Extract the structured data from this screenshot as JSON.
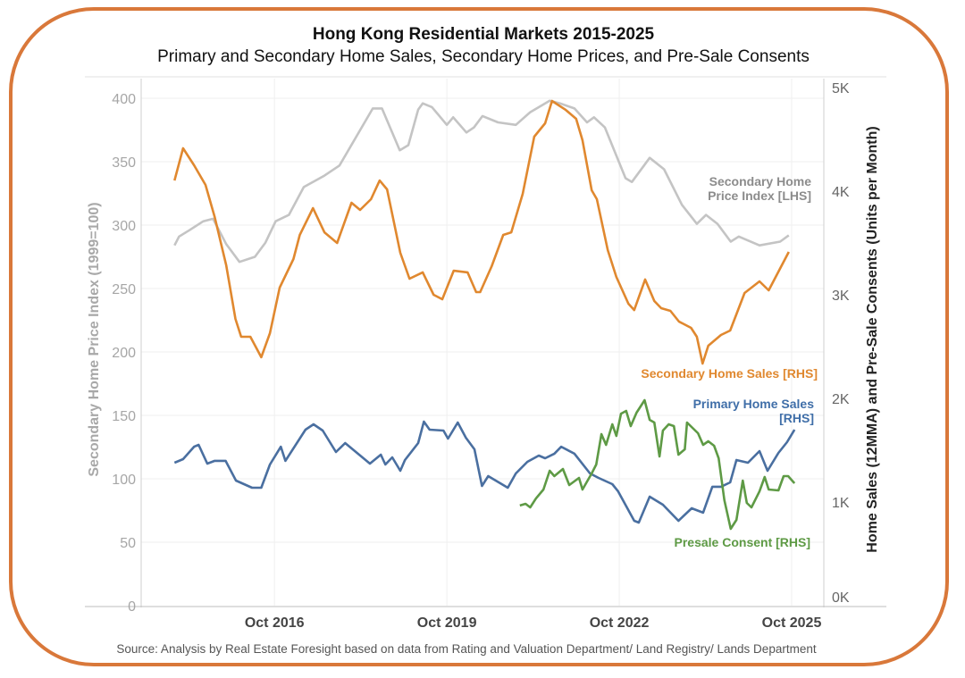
{
  "chart_data": {
    "type": "line",
    "title": "Hong Kong Residential Markets 2015-2025",
    "subtitle": "Primary and Secondary Home Sales, Secondary Home Prices, and Pre-Sale Consents",
    "source": "Source: Analysis by Real Estate Foresight based on data from Rating and Valuation Department/ Land Registry/ Lands Department",
    "ylabel_left": "Secondary Home Price Index (1999=100)",
    "ylabel_right": "Home Sales (12MMA) and Pre-Sale Consents (Units per Month)",
    "xlim": [
      2014.43,
      2026.31
    ],
    "ylim_left": [
      0,
      400
    ],
    "ylim_right": [
      0,
      5000
    ],
    "grid": true,
    "x_ticks": [
      {
        "value": 2016.75,
        "label": "Oct 2016"
      },
      {
        "value": 2019.75,
        "label": "Oct 2019"
      },
      {
        "value": 2022.75,
        "label": "Oct 2022"
      },
      {
        "value": 2025.75,
        "label": "Oct 2025"
      }
    ],
    "y_ticks_left": [
      {
        "value": 0,
        "label": "0"
      },
      {
        "value": 50,
        "label": "50"
      },
      {
        "value": 100,
        "label": "100"
      },
      {
        "value": 150,
        "label": "150"
      },
      {
        "value": 200,
        "label": "200"
      },
      {
        "value": 250,
        "label": "250"
      },
      {
        "value": 300,
        "label": "300"
      },
      {
        "value": 350,
        "label": "350"
      },
      {
        "value": 400,
        "label": "400"
      }
    ],
    "y_ticks_right": [
      {
        "value": 0,
        "label": "0K"
      },
      {
        "value": 1000,
        "label": "1K"
      },
      {
        "value": 2000,
        "label": "2K"
      },
      {
        "value": 3000,
        "label": "3K"
      },
      {
        "value": 4000,
        "label": "4K"
      },
      {
        "value": 5000,
        "label": "5K"
      }
    ],
    "series": [
      {
        "name": "Secondary Home Price Index [LHS]",
        "label_lines": [
          "Secondary Home",
          "Price Index [LHS]"
        ],
        "axis": "left",
        "color": "#c4c4c4",
        "label_color": "#8c8c8c",
        "points": [
          [
            2015.01,
            284
          ],
          [
            2015.09,
            291
          ],
          [
            2015.27,
            296
          ],
          [
            2015.51,
            303
          ],
          [
            2015.68,
            305
          ],
          [
            2015.91,
            285
          ],
          [
            2016.14,
            271
          ],
          [
            2016.41,
            275
          ],
          [
            2016.59,
            286
          ],
          [
            2016.77,
            303
          ],
          [
            2017.0,
            308
          ],
          [
            2017.26,
            330
          ],
          [
            2017.62,
            339
          ],
          [
            2017.88,
            347
          ],
          [
            2018.46,
            392
          ],
          [
            2018.62,
            392
          ],
          [
            2018.93,
            359
          ],
          [
            2019.08,
            363
          ],
          [
            2019.25,
            391
          ],
          [
            2019.33,
            396
          ],
          [
            2019.49,
            393
          ],
          [
            2019.75,
            379
          ],
          [
            2019.86,
            385
          ],
          [
            2020.09,
            373
          ],
          [
            2020.22,
            377
          ],
          [
            2020.37,
            386
          ],
          [
            2020.64,
            381
          ],
          [
            2020.95,
            379
          ],
          [
            2021.2,
            389
          ],
          [
            2021.54,
            398
          ],
          [
            2021.72,
            396
          ],
          [
            2021.97,
            392
          ],
          [
            2022.19,
            381
          ],
          [
            2022.31,
            385
          ],
          [
            2022.5,
            377
          ],
          [
            2022.86,
            337
          ],
          [
            2022.97,
            334
          ],
          [
            2023.28,
            353
          ],
          [
            2023.53,
            344
          ],
          [
            2023.84,
            316
          ],
          [
            2024.1,
            301
          ],
          [
            2024.26,
            308
          ],
          [
            2024.46,
            301
          ],
          [
            2024.69,
            287
          ],
          [
            2024.83,
            291
          ],
          [
            2025.19,
            284
          ],
          [
            2025.55,
            287
          ],
          [
            2025.7,
            292
          ]
        ]
      },
      {
        "name": "Secondary Home Sales [RHS]",
        "label_lines": [
          "Secondary Home Sales [RHS]"
        ],
        "axis": "right",
        "color": "#e0882f",
        "label_color": "#e0882f",
        "points": [
          [
            2015.01,
            4103
          ],
          [
            2015.16,
            4414
          ],
          [
            2015.35,
            4250
          ],
          [
            2015.55,
            4060
          ],
          [
            2015.71,
            3750
          ],
          [
            2015.91,
            3284
          ],
          [
            2016.07,
            2767
          ],
          [
            2016.17,
            2595
          ],
          [
            2016.33,
            2595
          ],
          [
            2016.52,
            2397
          ],
          [
            2016.67,
            2629
          ],
          [
            2016.84,
            3069
          ],
          [
            2017.08,
            3345
          ],
          [
            2017.19,
            3578
          ],
          [
            2017.42,
            3836
          ],
          [
            2017.62,
            3603
          ],
          [
            2017.84,
            3500
          ],
          [
            2018.09,
            3888
          ],
          [
            2018.24,
            3819
          ],
          [
            2018.43,
            3922
          ],
          [
            2018.58,
            4103
          ],
          [
            2018.71,
            4017
          ],
          [
            2018.94,
            3405
          ],
          [
            2019.1,
            3155
          ],
          [
            2019.33,
            3216
          ],
          [
            2019.52,
            3000
          ],
          [
            2019.67,
            2957
          ],
          [
            2019.87,
            3233
          ],
          [
            2020.11,
            3216
          ],
          [
            2020.26,
            3026
          ],
          [
            2020.33,
            3026
          ],
          [
            2020.53,
            3276
          ],
          [
            2020.73,
            3578
          ],
          [
            2020.87,
            3603
          ],
          [
            2021.07,
            3974
          ],
          [
            2021.27,
            4526
          ],
          [
            2021.46,
            4655
          ],
          [
            2021.58,
            4871
          ],
          [
            2021.82,
            4784
          ],
          [
            2022.0,
            4698
          ],
          [
            2022.11,
            4491
          ],
          [
            2022.27,
            4009
          ],
          [
            2022.36,
            3922
          ],
          [
            2022.55,
            3431
          ],
          [
            2022.7,
            3172
          ],
          [
            2022.91,
            2914
          ],
          [
            2023.01,
            2853
          ],
          [
            2023.2,
            3147
          ],
          [
            2023.36,
            2940
          ],
          [
            2023.48,
            2871
          ],
          [
            2023.64,
            2845
          ],
          [
            2023.79,
            2741
          ],
          [
            2024.0,
            2681
          ],
          [
            2024.1,
            2595
          ],
          [
            2024.2,
            2336
          ],
          [
            2024.3,
            2509
          ],
          [
            2024.52,
            2612
          ],
          [
            2024.68,
            2655
          ],
          [
            2024.93,
            3017
          ],
          [
            2025.19,
            3129
          ],
          [
            2025.35,
            3043
          ],
          [
            2025.7,
            3414
          ]
        ]
      },
      {
        "name": "Primary Home Sales [RHS]",
        "label_lines": [
          "Primary Home Sales",
          "[RHS]"
        ],
        "axis": "right",
        "color": "#4a6fa0",
        "label_color": "#3f6ea8",
        "points": [
          [
            2015.01,
            1379
          ],
          [
            2015.16,
            1414
          ],
          [
            2015.35,
            1534
          ],
          [
            2015.43,
            1552
          ],
          [
            2015.58,
            1371
          ],
          [
            2015.71,
            1397
          ],
          [
            2015.9,
            1397
          ],
          [
            2016.08,
            1207
          ],
          [
            2016.36,
            1138
          ],
          [
            2016.52,
            1138
          ],
          [
            2016.67,
            1362
          ],
          [
            2016.86,
            1534
          ],
          [
            2016.94,
            1397
          ],
          [
            2017.29,
            1698
          ],
          [
            2017.43,
            1750
          ],
          [
            2017.59,
            1690
          ],
          [
            2017.82,
            1483
          ],
          [
            2017.98,
            1569
          ],
          [
            2018.41,
            1371
          ],
          [
            2018.6,
            1457
          ],
          [
            2018.68,
            1362
          ],
          [
            2018.8,
            1431
          ],
          [
            2018.94,
            1302
          ],
          [
            2019.02,
            1405
          ],
          [
            2019.25,
            1569
          ],
          [
            2019.35,
            1776
          ],
          [
            2019.45,
            1698
          ],
          [
            2019.69,
            1690
          ],
          [
            2019.77,
            1612
          ],
          [
            2019.94,
            1767
          ],
          [
            2020.08,
            1621
          ],
          [
            2020.23,
            1509
          ],
          [
            2020.36,
            1155
          ],
          [
            2020.47,
            1250
          ],
          [
            2020.81,
            1138
          ],
          [
            2020.95,
            1276
          ],
          [
            2021.15,
            1388
          ],
          [
            2021.35,
            1448
          ],
          [
            2021.46,
            1422
          ],
          [
            2021.62,
            1466
          ],
          [
            2021.74,
            1534
          ],
          [
            2021.97,
            1466
          ],
          [
            2022.24,
            1276
          ],
          [
            2022.39,
            1233
          ],
          [
            2022.63,
            1172
          ],
          [
            2022.73,
            1103
          ],
          [
            2023.01,
            819
          ],
          [
            2023.09,
            802
          ],
          [
            2023.28,
            1052
          ],
          [
            2023.51,
            974
          ],
          [
            2023.78,
            819
          ],
          [
            2024.01,
            940
          ],
          [
            2024.21,
            897
          ],
          [
            2024.37,
            1147
          ],
          [
            2024.52,
            1147
          ],
          [
            2024.68,
            1190
          ],
          [
            2024.79,
            1405
          ],
          [
            2024.99,
            1379
          ],
          [
            2025.19,
            1491
          ],
          [
            2025.33,
            1302
          ],
          [
            2025.52,
            1474
          ],
          [
            2025.67,
            1578
          ],
          [
            2025.8,
            1698
          ]
        ]
      },
      {
        "name": "Presale Consent [RHS]",
        "label_lines": [
          "Presale Consent [RHS]"
        ],
        "axis": "right",
        "color": "#5e9a45",
        "label_color": "#5e9a45",
        "points": [
          [
            2021.02,
            966
          ],
          [
            2021.12,
            983
          ],
          [
            2021.2,
            948
          ],
          [
            2021.3,
            1034
          ],
          [
            2021.43,
            1121
          ],
          [
            2021.54,
            1302
          ],
          [
            2021.62,
            1250
          ],
          [
            2021.77,
            1319
          ],
          [
            2021.88,
            1164
          ],
          [
            2022.05,
            1233
          ],
          [
            2022.11,
            1121
          ],
          [
            2022.27,
            1276
          ],
          [
            2022.35,
            1362
          ],
          [
            2022.44,
            1655
          ],
          [
            2022.52,
            1552
          ],
          [
            2022.63,
            1750
          ],
          [
            2022.7,
            1638
          ],
          [
            2022.78,
            1853
          ],
          [
            2022.87,
            1879
          ],
          [
            2022.95,
            1733
          ],
          [
            2023.05,
            1862
          ],
          [
            2023.19,
            1983
          ],
          [
            2023.28,
            1793
          ],
          [
            2023.36,
            1767
          ],
          [
            2023.45,
            1440
          ],
          [
            2023.51,
            1690
          ],
          [
            2023.61,
            1750
          ],
          [
            2023.7,
            1733
          ],
          [
            2023.78,
            1457
          ],
          [
            2023.89,
            1509
          ],
          [
            2023.93,
            1767
          ],
          [
            2024.12,
            1664
          ],
          [
            2024.21,
            1552
          ],
          [
            2024.3,
            1586
          ],
          [
            2024.4,
            1543
          ],
          [
            2024.48,
            1422
          ],
          [
            2024.58,
            1017
          ],
          [
            2024.69,
            741
          ],
          [
            2024.79,
            828
          ],
          [
            2024.9,
            1207
          ],
          [
            2024.97,
            991
          ],
          [
            2025.05,
            948
          ],
          [
            2025.19,
            1103
          ],
          [
            2025.28,
            1241
          ],
          [
            2025.35,
            1121
          ],
          [
            2025.52,
            1112
          ],
          [
            2025.61,
            1250
          ],
          [
            2025.69,
            1250
          ],
          [
            2025.8,
            1181
          ]
        ]
      }
    ]
  }
}
